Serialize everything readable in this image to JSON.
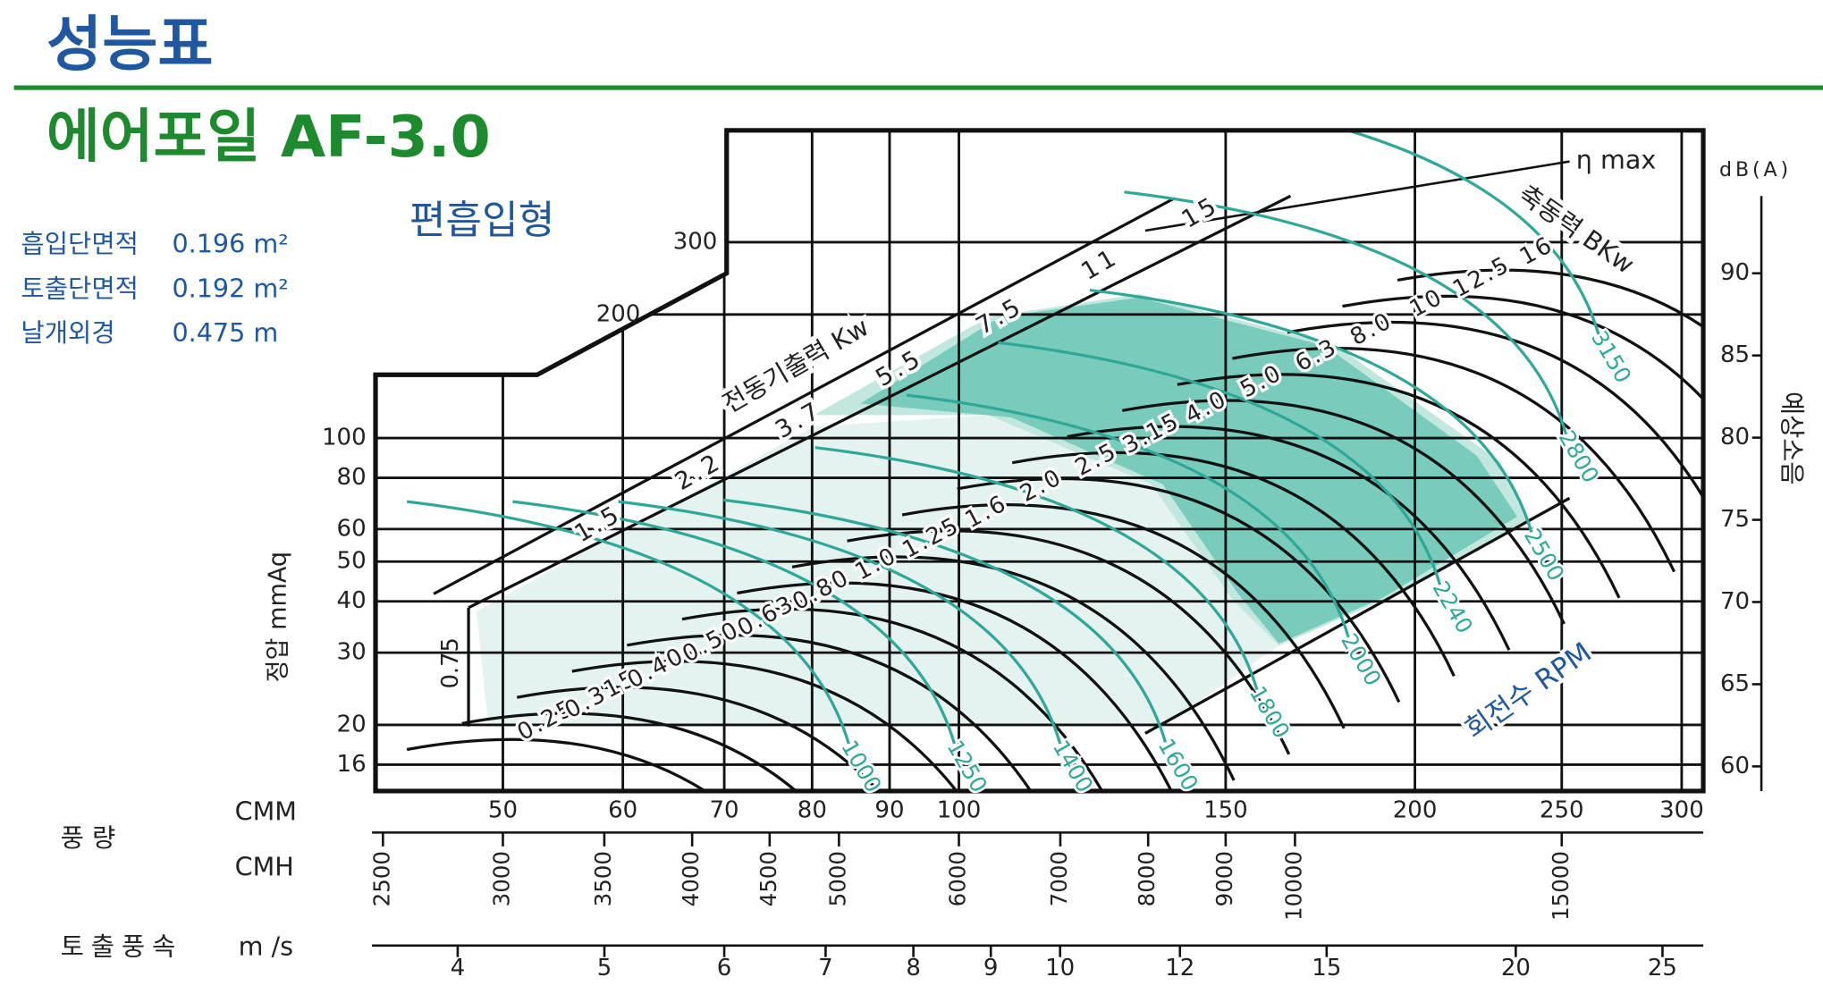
{
  "header": {
    "title": "성능표",
    "model": "에어포일 AF-3.0",
    "inlet_type": "편흡입형"
  },
  "specs": [
    {
      "label": "흡입단면적",
      "value": "0.196 m²"
    },
    {
      "label": "토출단면적",
      "value": "0.192 m²"
    },
    {
      "label": "날개외경",
      "value": "0.475 m"
    }
  ],
  "chart_data": {
    "type": "fan-performance",
    "y_label": "정압 mmAq",
    "log_scale": true,
    "grid": true,
    "ylim": [
      13.8,
      562
    ],
    "yticks": [
      16,
      20,
      30,
      40,
      50,
      60,
      80,
      100,
      200,
      300
    ],
    "flow_label": "풍 량",
    "xlabel": "CMM",
    "xlim": [
      41.2,
      310
    ],
    "xticks": [
      50,
      60,
      70,
      80,
      90,
      100,
      150,
      200,
      250,
      300
    ],
    "cmh_label": "CMH",
    "cmh_lim": [
      2472,
      18600
    ],
    "cmh_ticks": [
      2500,
      3000,
      3500,
      4000,
      4500,
      5000,
      6000,
      7000,
      8000,
      9000,
      10000,
      15000
    ],
    "velocity_title": "토출풍속",
    "velocity_label": "m /s",
    "velocity_lim": [
      3.53,
      26.6
    ],
    "velocity_ticks": [
      4,
      5,
      6,
      7,
      8,
      9,
      10,
      12,
      15,
      20,
      25
    ],
    "y2_label": "dB(A)",
    "y2_title": "예상소음",
    "y2lim": [
      58.5,
      94.7
    ],
    "y2ticks": [
      60,
      65,
      70,
      75,
      80,
      85,
      90
    ],
    "eta_label": "η max",
    "motor_output": {
      "label": "전동기출력 Kw",
      "values": [
        "0.75",
        "1.5",
        "2.2",
        "3.7",
        "5.5",
        "7.5",
        "11",
        "15"
      ]
    },
    "shaft_power": {
      "label": "축동력 BKw",
      "values": [
        "0.25",
        "0.315",
        "0.40",
        "0.50",
        "0.63",
        "0.80",
        "1.0",
        "1.25",
        "1.6",
        "2.0",
        "2.5",
        "3.15",
        "4.0",
        "5.0",
        "6.3",
        "8.0",
        "10",
        "12.5",
        "16"
      ]
    },
    "rpm": {
      "label": "회전수 RPM",
      "color": "#2fa898",
      "values": [
        "1000",
        "1250",
        "1400",
        "1600",
        "1800",
        "2000",
        "2240",
        "2500",
        "2800",
        "3150"
      ]
    }
  }
}
